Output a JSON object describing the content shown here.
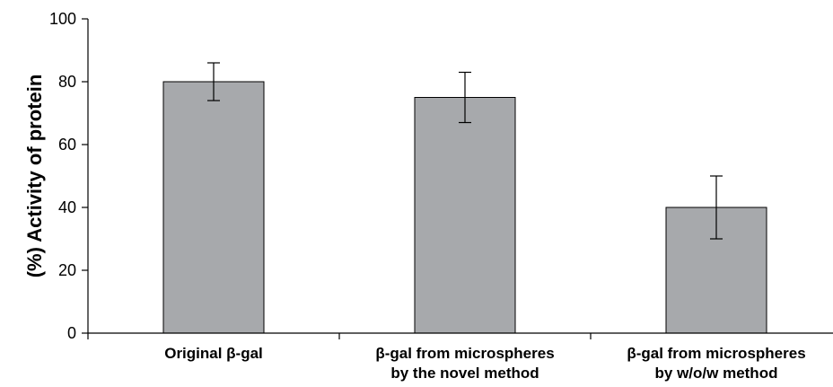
{
  "chart_data": {
    "type": "bar",
    "categories": [
      [
        "Original β-gal"
      ],
      [
        "β-gal from microspheres",
        "by the novel method"
      ],
      [
        "β-gal from microspheres",
        "by w/o/w method"
      ]
    ],
    "values": [
      80,
      75,
      40
    ],
    "errors": [
      6,
      8,
      10
    ],
    "ylabel": "(%) Activity of protein",
    "ylim": [
      0,
      100
    ],
    "yticks": [
      0,
      20,
      40,
      60,
      80,
      100
    ],
    "grid": false,
    "colors": {
      "bar": "#a7a9ac",
      "bar_stroke": "#000000",
      "axis": "#000000"
    }
  }
}
